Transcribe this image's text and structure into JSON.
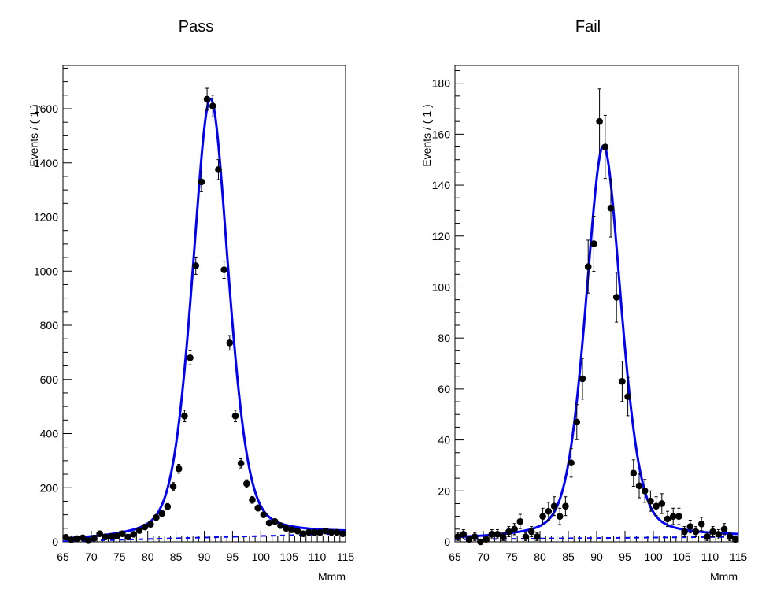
{
  "chart_data": [
    {
      "type": "scatter",
      "title": "Pass",
      "xlabel": "Mmm",
      "ylabel": "Events / ( 1 )",
      "xlim": [
        65,
        115
      ],
      "ylim": [
        0,
        1760
      ],
      "xticks": [
        "65",
        "70",
        "75",
        "80",
        "85",
        "90",
        "95",
        "100",
        "105",
        "110",
        "115"
      ],
      "yticks": [
        "0",
        "200",
        "400",
        "600",
        "800",
        "1000",
        "1200",
        "1400",
        "1600"
      ],
      "x": [
        65.5,
        66.5,
        67.5,
        68.5,
        69.5,
        70.5,
        71.5,
        72.5,
        73.5,
        74.5,
        75.5,
        76.5,
        77.5,
        78.5,
        79.5,
        80.5,
        81.5,
        82.5,
        83.5,
        84.5,
        85.5,
        86.5,
        87.5,
        88.5,
        89.5,
        90.5,
        91.5,
        92.5,
        93.5,
        94.5,
        95.5,
        96.5,
        97.5,
        98.5,
        99.5,
        100.5,
        101.5,
        102.5,
        103.5,
        104.5,
        105.5,
        106.5,
        107.5,
        108.5,
        109.5,
        110.5,
        111.5,
        112.5,
        113.5,
        114.5
      ],
      "y": [
        17,
        8,
        12,
        15,
        5,
        14,
        30,
        18,
        20,
        22,
        30,
        18,
        28,
        42,
        55,
        65,
        90,
        105,
        130,
        205,
        270,
        465,
        680,
        1020,
        1330,
        1635,
        1610,
        1375,
        1005,
        735,
        465,
        290,
        215,
        155,
        125,
        100,
        70,
        75,
        60,
        50,
        45,
        40,
        30,
        35,
        35,
        35,
        40,
        35,
        35,
        30
      ],
      "err": [
        4,
        3,
        3.5,
        4,
        2.5,
        4,
        5.5,
        4,
        4.5,
        5,
        5.5,
        4,
        5,
        6.5,
        7.5,
        8,
        9.5,
        10,
        11.5,
        14,
        16.5,
        21.5,
        26,
        32,
        36.5,
        40.5,
        40,
        37,
        31.7,
        27,
        21.5,
        17,
        14.5,
        12.5,
        11,
        10,
        8.4,
        8.7,
        7.7,
        7,
        6.7,
        6.3,
        5.5,
        5.9,
        5.9,
        5.9,
        6.3,
        5.9,
        5.9,
        5.5
      ],
      "series": [
        {
          "name": "",
          "kind": "fit",
          "peak": 1622,
          "mean": 91.1,
          "width": 3.4,
          "bkg_start": 2,
          "bkg_end": 30
        },
        {
          "name": "",
          "kind": "background",
          "bkg_start": 2,
          "bkg_end": 30
        }
      ]
    },
    {
      "type": "scatter",
      "title": "Fail",
      "xlabel": "Mmm",
      "ylabel": "Events / ( 1 )",
      "xlim": [
        65,
        115
      ],
      "ylim": [
        0,
        187
      ],
      "xticks": [
        "65",
        "70",
        "75",
        "80",
        "85",
        "90",
        "95",
        "100",
        "105",
        "110",
        "115"
      ],
      "yticks": [
        "0",
        "20",
        "40",
        "60",
        "80",
        "100",
        "120",
        "140",
        "160",
        "180"
      ],
      "x": [
        65.5,
        66.5,
        67.5,
        68.5,
        69.5,
        70.5,
        71.5,
        72.5,
        73.5,
        74.5,
        75.5,
        76.5,
        77.5,
        78.5,
        79.5,
        80.5,
        81.5,
        82.5,
        83.5,
        84.5,
        85.5,
        86.5,
        87.5,
        88.5,
        89.5,
        90.5,
        91.5,
        92.5,
        93.5,
        94.5,
        95.5,
        96.5,
        97.5,
        98.5,
        99.5,
        100.5,
        101.5,
        102.5,
        103.5,
        104.5,
        105.5,
        106.5,
        107.5,
        108.5,
        109.5,
        110.5,
        111.5,
        112.5,
        113.5,
        114.5
      ],
      "y": [
        2,
        3,
        1,
        2,
        0,
        1,
        3,
        3,
        2,
        4,
        5,
        8,
        2,
        4,
        2,
        10,
        12,
        14,
        10,
        14,
        31,
        47,
        64,
        108,
        117,
        165,
        155,
        131,
        96,
        63,
        57,
        27,
        22,
        20,
        16,
        14,
        15,
        9,
        10,
        10,
        4,
        6,
        4,
        7,
        2,
        4,
        3,
        5,
        2,
        1
      ],
      "err": [
        1.5,
        1.8,
        1,
        1.5,
        1,
        1,
        1.8,
        1.8,
        1.5,
        2,
        2.2,
        2.8,
        1.5,
        2,
        1.5,
        3.2,
        3.5,
        3.7,
        3.2,
        3.7,
        5.6,
        6.9,
        8,
        10.4,
        10.8,
        12.8,
        12.4,
        11.4,
        9.8,
        7.9,
        7.5,
        5.2,
        4.7,
        4.5,
        4,
        3.7,
        3.9,
        3,
        3.2,
        3.2,
        2,
        2.5,
        2,
        2.6,
        1.5,
        2,
        1.8,
        2.2,
        1.5,
        1
      ],
      "series": [
        {
          "name": "",
          "kind": "fit",
          "peak": 155,
          "mean": 91.2,
          "width": 3.3,
          "bkg_start": 1,
          "bkg_end": 2
        },
        {
          "name": "",
          "kind": "background",
          "bkg_start": 1,
          "bkg_end": 2
        }
      ]
    }
  ]
}
